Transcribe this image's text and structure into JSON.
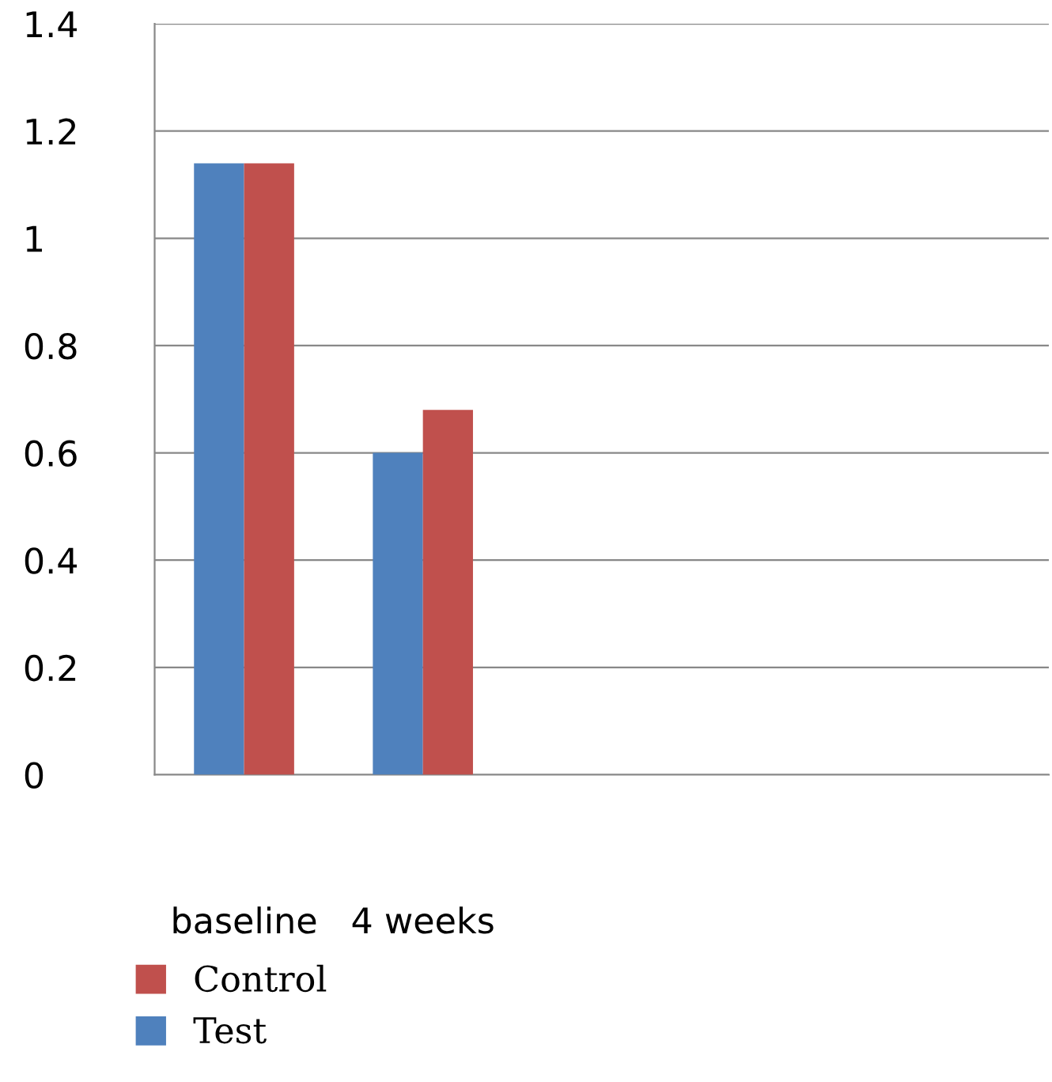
{
  "chart_data": {
    "type": "bar",
    "categories": [
      "baseline",
      "4 weeks",
      null,
      null,
      null
    ],
    "series": [
      {
        "name": "Test",
        "color": "#4f81bd",
        "values": [
          1.14,
          0.6,
          null,
          null,
          null
        ]
      },
      {
        "name": "Control",
        "color": "#c0504d",
        "values": [
          1.14,
          0.68,
          null,
          null,
          null
        ]
      }
    ],
    "ylim": [
      0,
      1.4
    ],
    "yticks": [
      0,
      0.2,
      0.4,
      0.6,
      0.8,
      1,
      1.2,
      1.4
    ],
    "grid": "y",
    "legend": "bottom left"
  }
}
